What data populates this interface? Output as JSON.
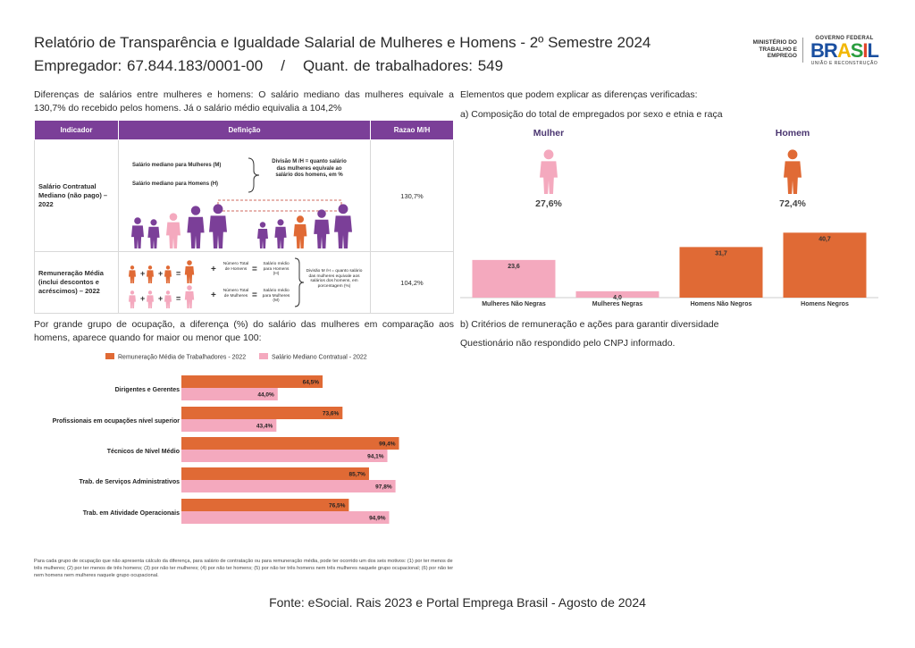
{
  "header": {
    "title": "Relatório de Transparência e Igualdade Salarial de Mulheres e Homens - 2º Semestre 2024",
    "employer": "Empregador: 67.844.183/0001-00",
    "separator": "/",
    "workers": "Quant. de trabalhadores: 549"
  },
  "logos": {
    "ministry": "MINISTÉRIO DO TRABALHO E EMPREGO",
    "gov_top": "GOVERNO FEDERAL",
    "gov_main": "BRASIL",
    "gov_bottom": "UNIÃO E RECONSTRUÇÃO"
  },
  "left": {
    "intro": "Diferenças de salários entre mulheres e homens: O salário mediano das mulheres equivale a 130,7% do recebido pelos homens. Já o salário médio equivalia a 104,2%",
    "table": {
      "headers": [
        "Indicador",
        "Definição",
        "Razao M/H"
      ],
      "row1": {
        "indicator": "Salário Contratual Mediano (não pago) – 2022",
        "line_women": "Salário mediano para Mulheres (M)",
        "line_men": "Salário mediano para Homens (H)",
        "division": "Divisão M /H = quanto salário das mulheres equivale ao salário dos homens, em %",
        "ratio": "130,7%"
      },
      "row2": {
        "indicator": "Remuneração Média (inclui descontos e acréscimos) – 2022",
        "total_men": "Número Total de Homens",
        "avg_men": "Salário médio para Homens (H)",
        "total_women": "Número Total de Mulheres",
        "avg_women": "Salário médio para Mulheres (M)",
        "division": "Divisão M /H = quanto salário das mulheres equivale aos salários dos homens, em porcentagem (%)",
        "ratio": "104,2%"
      }
    },
    "occupation_intro": "Por grande grupo de ocupação, a diferença (%) do salário das mulheres em comparação aos homens, aparece quando for maior ou menor que 100:",
    "note": "Para cada grupo de ocupação que não apresenta cálculo da diferença, para salário de contratação ou para remuneração média, pode ter ocorrido um dos seis motivos: (1) por ter menos de três mulheres; (2) por ter menos de três homens; (3) por não ter mulheres; (4) por não ter homens; (5) por não ter três homens nem três mulheres naquele grupo ocupacional; (6) por não ter nem homens nem mulheres naquele grupo ocupacional."
  },
  "right": {
    "elements_title": "Elementos que podem explicar as diferenças verificadas:",
    "section_a": "a) Composição do total de empregados por sexo e etnia e raça",
    "section_b": "b) Critérios de remuneração e ações para garantir diversidade",
    "section_b_text": "Questionário não respondido pelo CNPJ informado."
  },
  "colors": {
    "purple": "#7b3f98",
    "orange": "#e06a35",
    "pink": "#f4a9be",
    "dark": "#2b2b2b"
  },
  "chart_data": [
    {
      "type": "bar",
      "gender_labels": [
        "Mulher",
        "Homem"
      ],
      "gender_percent": [
        "27,6%",
        "72,4%"
      ],
      "categories": [
        "Mulheres Não Negras",
        "Mulheres Negras",
        "Homens Não Negros",
        "Homens Negros"
      ],
      "values": [
        23.6,
        4.0,
        31.7,
        40.7
      ],
      "value_labels": [
        "23,6",
        "4,0",
        "31,7",
        "40,7"
      ],
      "ylim": [
        0,
        42
      ]
    },
    {
      "type": "bar",
      "orientation": "horizontal",
      "categories": [
        "Dirigentes e Gerentes",
        "Profissionais em ocupações nível superior",
        "Técnicos de Nível Médio",
        "Trab. de Serviços Administrativos",
        "Trab. em Atividade Operacionais"
      ],
      "series": [
        {
          "name": "Remuneração Média de Trabalhadores - 2022",
          "values": [
            64.5,
            73.6,
            99.4,
            85.7,
            76.5
          ],
          "labels": [
            "64,5%",
            "73,6%",
            "99,4%",
            "85,7%",
            "76,5%"
          ]
        },
        {
          "name": "Salário Mediano Contratual - 2022",
          "values": [
            44.0,
            43.4,
            94.1,
            97.8,
            94.9
          ],
          "labels": [
            "44,0%",
            "43,4%",
            "94,1%",
            "97,8%",
            "94,9%"
          ]
        }
      ],
      "xlim": [
        0,
        100
      ],
      "legend": "top"
    }
  ],
  "footer": {
    "source": "Fonte: eSocial. Rais 2023 e Portal Emprega Brasil - Agosto de 2024"
  }
}
